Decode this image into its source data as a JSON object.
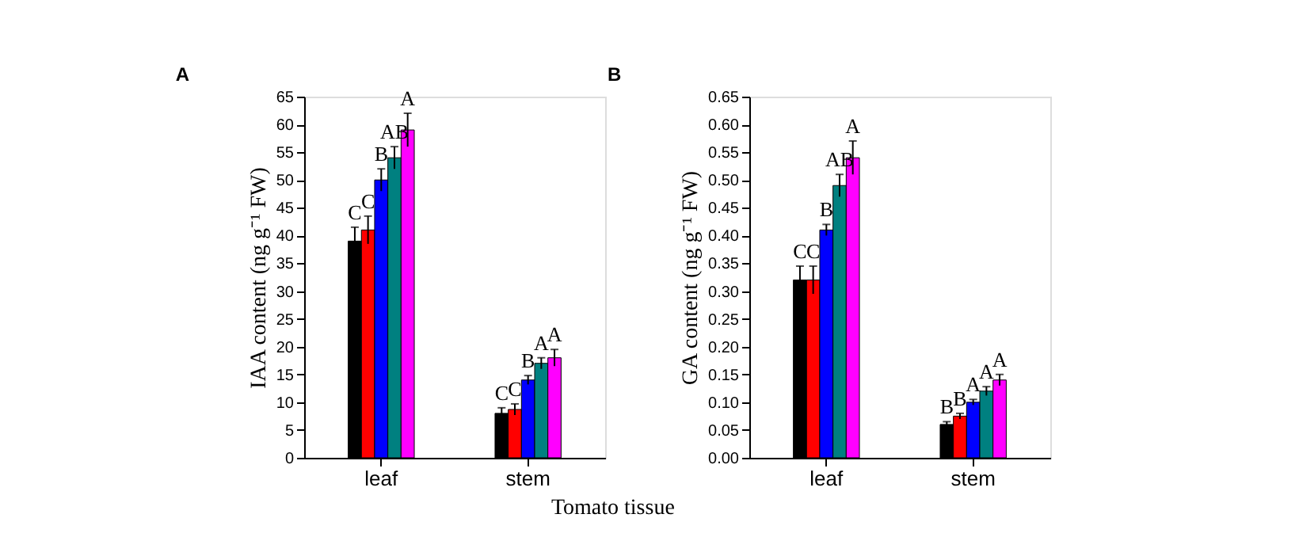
{
  "chart_data": [
    {
      "type": "bar",
      "title": "A",
      "xlabel": "Tomato tissue",
      "ylabel": "IAA content (ng g⁻¹ FW)",
      "categories": [
        "leaf",
        "stem"
      ],
      "ylim": [
        0,
        65
      ],
      "yticks": [
        0,
        5,
        10,
        15,
        20,
        25,
        30,
        35,
        40,
        45,
        50,
        55,
        60,
        65
      ],
      "grid": false,
      "legend": false,
      "series": [
        {
          "color": "#000000",
          "values": [
            39,
            8
          ],
          "errors": [
            2.5,
            1
          ],
          "value_labels": [
            "C",
            "C"
          ]
        },
        {
          "color": "#ff0000",
          "values": [
            41,
            8.7
          ],
          "errors": [
            2.5,
            1
          ],
          "value_labels": [
            "C",
            "C"
          ]
        },
        {
          "color": "#0000ff",
          "values": [
            50,
            14
          ],
          "errors": [
            2,
            0.8
          ],
          "value_labels": [
            "B",
            "B"
          ]
        },
        {
          "color": "#008080",
          "values": [
            54,
            17
          ],
          "errors": [
            2,
            1
          ],
          "value_labels": [
            "AB",
            "A"
          ]
        },
        {
          "color": "#ff00ff",
          "values": [
            59,
            18
          ],
          "errors": [
            3,
            1.5
          ],
          "value_labels": [
            "A",
            "A"
          ]
        }
      ]
    },
    {
      "type": "bar",
      "title": "B",
      "ylabel": "GA content (ng g⁻¹ FW)",
      "categories": [
        "leaf",
        "stem"
      ],
      "ylim": [
        0,
        0.65
      ],
      "yticks": [
        {
          "value": 0,
          "label": "0.00"
        },
        {
          "value": 0.05,
          "label": "0.05"
        },
        {
          "value": 0.1,
          "label": "0.10"
        },
        {
          "value": 0.15,
          "label": "0.15"
        },
        {
          "value": 0.2,
          "label": "0.20"
        },
        {
          "value": 0.25,
          "label": "0.25"
        },
        {
          "value": 0.3,
          "label": "0.30"
        },
        {
          "value": 0.35,
          "label": "0.35"
        },
        {
          "value": 0.4,
          "label": "0.40"
        },
        {
          "value": 0.45,
          "label": "0.45"
        },
        {
          "value": 0.5,
          "label": "0.50"
        },
        {
          "value": 0.55,
          "label": "0.55"
        },
        {
          "value": 0.6,
          "label": "0.60"
        },
        {
          "value": 0.65,
          "label": "0.65"
        }
      ],
      "grid": false,
      "legend": false,
      "series": [
        {
          "color": "#000000",
          "values": [
            0.32,
            0.06
          ],
          "errors": [
            0.025,
            0.005
          ],
          "value_labels": [
            "C",
            "B"
          ]
        },
        {
          "color": "#ff0000",
          "values": [
            0.32,
            0.075
          ],
          "errors": [
            0.025,
            0.005
          ],
          "value_labels": [
            "C",
            "B"
          ]
        },
        {
          "color": "#0000ff",
          "values": [
            0.41,
            0.1
          ],
          "errors": [
            0.01,
            0.005
          ],
          "value_labels": [
            "B",
            "A"
          ]
        },
        {
          "color": "#008080",
          "values": [
            0.49,
            0.12
          ],
          "errors": [
            0.02,
            0.008
          ],
          "value_labels": [
            "AB",
            "A"
          ]
        },
        {
          "color": "#ff00ff",
          "values": [
            0.54,
            0.14
          ],
          "errors": [
            0.03,
            0.01
          ],
          "value_labels": [
            "A",
            "A"
          ]
        }
      ]
    }
  ]
}
